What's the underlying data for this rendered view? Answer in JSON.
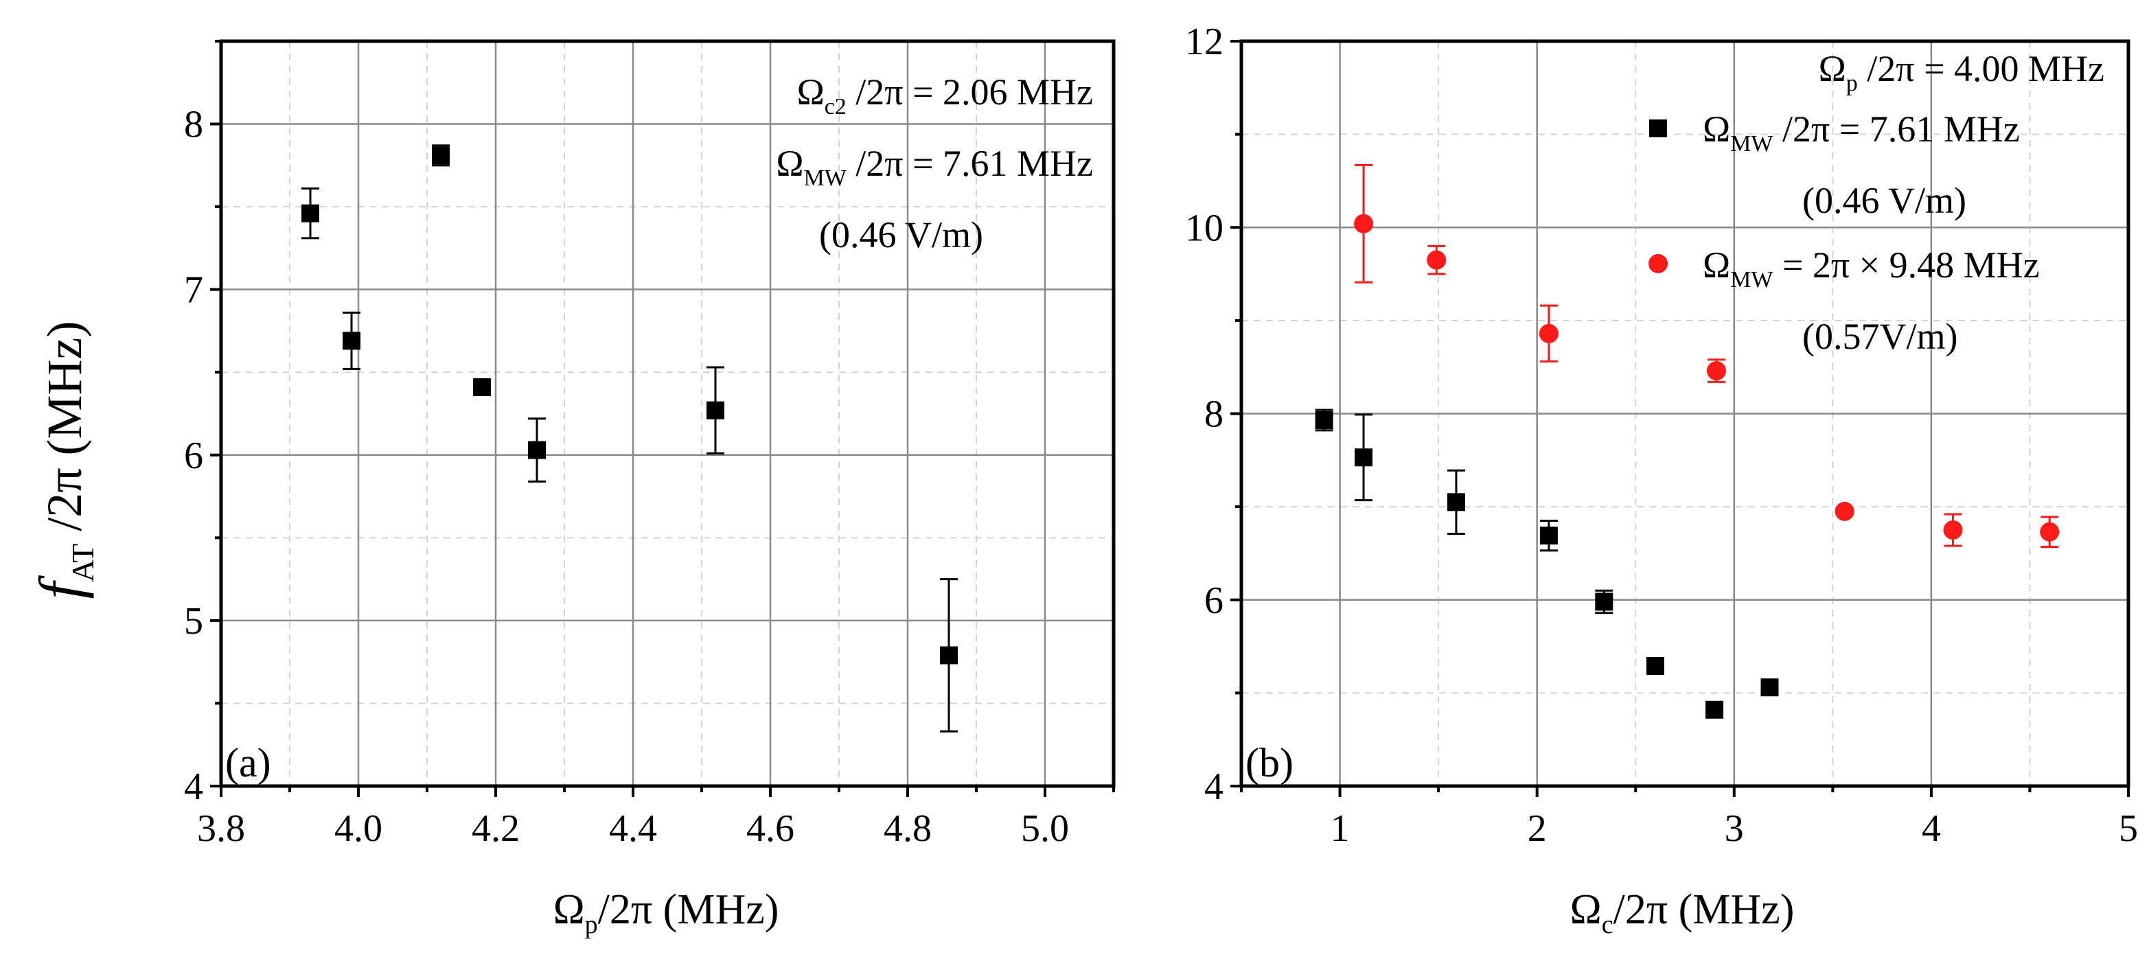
{
  "chart_data": [
    {
      "panel": "(a)",
      "type": "scatter",
      "xlabel": "Ω_p/2π (MHz)",
      "ylabel": "f_AT /2π (MHz)",
      "xlim": [
        3.8,
        5.1
      ],
      "ylim": [
        4,
        8.5
      ],
      "xticks": [
        3.8,
        4.0,
        4.2,
        4.4,
        4.6,
        4.8,
        5.0
      ],
      "xtick_labels": [
        "3.8",
        "4.0",
        "4.2",
        "4.4",
        "4.6",
        "4.8",
        "5.0"
      ],
      "yticks": [
        4,
        5,
        6,
        7,
        8
      ],
      "ytick_labels": [
        "4",
        "5",
        "6",
        "7",
        "8"
      ],
      "annotations": [
        {
          "symbol": "Ω",
          "sub": "c2",
          "text": " /2π =  2.06 MHz"
        },
        {
          "symbol": "Ω",
          "sub": "MW",
          "text": " /2π = 7.61 MHz"
        },
        {
          "symbol": "",
          "sub": "",
          "text": "(0.46 V/m)"
        }
      ],
      "series": [
        {
          "name": "black squares",
          "color": "#000000",
          "marker": "square",
          "x": [
            3.93,
            3.99,
            4.12,
            4.18,
            4.26,
            4.52,
            4.86
          ],
          "y": [
            7.46,
            6.69,
            7.81,
            6.41,
            6.03,
            6.27,
            4.79
          ],
          "err": [
            0.15,
            0.17,
            0.06,
            0.0,
            0.19,
            0.26,
            0.46
          ]
        }
      ]
    },
    {
      "panel": "(b)",
      "type": "scatter",
      "xlabel": "Ω_c/2π (MHz)",
      "ylabel": "",
      "xlim": [
        0.5,
        5.0
      ],
      "ylim": [
        4,
        12
      ],
      "xticks": [
        1,
        2,
        3,
        4,
        5
      ],
      "xtick_labels": [
        "1",
        "2",
        "3",
        "4",
        "5"
      ],
      "yticks": [
        4,
        6,
        8,
        10,
        12
      ],
      "ytick_labels": [
        "4",
        "6",
        "8",
        "10",
        "12"
      ],
      "annotations": [
        {
          "symbol": "Ω",
          "sub": "p",
          "text": " /2π =  4.00 MHz"
        }
      ],
      "series": [
        {
          "name": "Ω_MW /2π =  7.61 MHz (0.46 V/m)",
          "legend_symbol": "Ω",
          "legend_sub": "MW",
          "legend_text": " /2π =  7.61 MHz",
          "legend_text2": "(0.46 V/m)",
          "color": "#000000",
          "marker": "square",
          "x": [
            0.92,
            1.12,
            1.59,
            2.06,
            2.34,
            2.6,
            2.9,
            3.18
          ],
          "y": [
            7.93,
            7.53,
            7.05,
            6.69,
            5.98,
            5.29,
            4.82,
            5.06
          ],
          "err": [
            0.11,
            0.46,
            0.34,
            0.16,
            0.12,
            0.0,
            0.0,
            0.0
          ]
        },
        {
          "name": "Ω_MW = 2π × 9.48 MHz (0.57V/m)",
          "legend_symbol": "Ω",
          "legend_sub": "MW",
          "legend_text": " = 2π × 9.48 MHz",
          "legend_text2": "(0.57V/m)",
          "color": "#ff1a1a",
          "marker": "circle",
          "x": [
            1.12,
            1.49,
            2.06,
            2.91,
            3.56,
            4.11,
            4.6
          ],
          "y": [
            10.04,
            9.65,
            8.86,
            8.46,
            6.95,
            6.75,
            6.73
          ],
          "err": [
            0.63,
            0.15,
            0.3,
            0.12,
            0.0,
            0.17,
            0.16
          ]
        }
      ]
    }
  ],
  "y_axis_title": {
    "symbol": "f",
    "sub": "AT",
    "text": " /2π (MHz)"
  },
  "x_axis_titles": [
    {
      "symbol": "Ω",
      "sub": "p",
      "text": "/2π (MHz)"
    },
    {
      "symbol": "Ω",
      "sub": "c",
      "text": "/2π (MHz)"
    }
  ]
}
